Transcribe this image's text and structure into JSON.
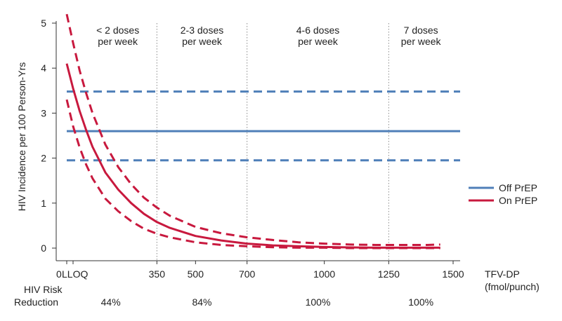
{
  "chart_data": {
    "type": "line",
    "ylabel": "HIV Incidence per 100 Person-Yrs",
    "xlabel": [
      "TFV-DP",
      "(fmol/punch)"
    ],
    "ylim": [
      0,
      5
    ],
    "xlim": [
      0,
      1500
    ],
    "x_ticks": [
      {
        "value": 0,
        "label": "0"
      },
      {
        "value": 350,
        "label": "350"
      },
      {
        "value": 500,
        "label": "500"
      },
      {
        "value": 700,
        "label": "700"
      },
      {
        "value": 1000,
        "label": "1000"
      },
      {
        "value": 1250,
        "label": "1250"
      },
      {
        "value": 1500,
        "label": "1500"
      }
    ],
    "y_ticks": [
      0,
      1,
      2,
      3,
      4,
      5
    ],
    "lloq": {
      "label": "LLOQ"
    },
    "dose_regions": [
      {
        "label": [
          "< 2 doses",
          "per week"
        ],
        "from": 0,
        "to": 350
      },
      {
        "label": [
          "2-3 doses",
          "per week"
        ],
        "from": 350,
        "to": 700
      },
      {
        "label": [
          "4-6 doses",
          "per week"
        ],
        "from": 700,
        "to": 1250
      },
      {
        "label": [
          "7 doses",
          "per week"
        ],
        "from": 1250,
        "to": 1500
      }
    ],
    "dividers": [
      350,
      700,
      1250
    ],
    "risk_reduction": {
      "label": [
        "HIV Risk",
        "Reduction"
      ],
      "values": [
        "44%",
        "84%",
        "100%",
        "100%"
      ]
    },
    "legend": {
      "placement": "right",
      "entries": [
        "Off PrEP",
        "On PrEP"
      ]
    },
    "series": [
      {
        "name": "Off PrEP",
        "color": "#4f7fb8",
        "x": [
          0,
          1500
        ],
        "y": [
          2.6,
          2.6
        ],
        "ci_lower": [
          1.95,
          1.95
        ],
        "ci_upper": [
          3.48,
          3.48
        ]
      },
      {
        "name": "On PrEP",
        "color": "#c8193e",
        "x": [
          0,
          25,
          50,
          75,
          100,
          150,
          200,
          250,
          300,
          350,
          400,
          500,
          600,
          700,
          800,
          900,
          1000,
          1100,
          1200,
          1300,
          1400,
          1450
        ],
        "y": [
          4.1,
          3.54,
          3.05,
          2.63,
          2.25,
          1.68,
          1.3,
          1.0,
          0.76,
          0.58,
          0.45,
          0.27,
          0.17,
          0.1,
          0.06,
          0.04,
          0.025,
          0.015,
          0.01,
          0.01,
          0.01,
          0.01
        ],
        "ci_upper": [
          5.2,
          4.55,
          3.95,
          3.45,
          3.0,
          2.3,
          1.8,
          1.42,
          1.12,
          0.9,
          0.72,
          0.47,
          0.33,
          0.24,
          0.18,
          0.13,
          0.1,
          0.08,
          0.07,
          0.07,
          0.07,
          0.08
        ],
        "ci_lower": [
          3.3,
          2.7,
          2.24,
          1.86,
          1.55,
          1.1,
          0.82,
          0.6,
          0.43,
          0.32,
          0.24,
          0.13,
          0.07,
          0.04,
          0.02,
          0.01,
          0.01,
          0.0,
          0.0,
          0.0,
          0.0,
          0.0
        ]
      }
    ]
  }
}
